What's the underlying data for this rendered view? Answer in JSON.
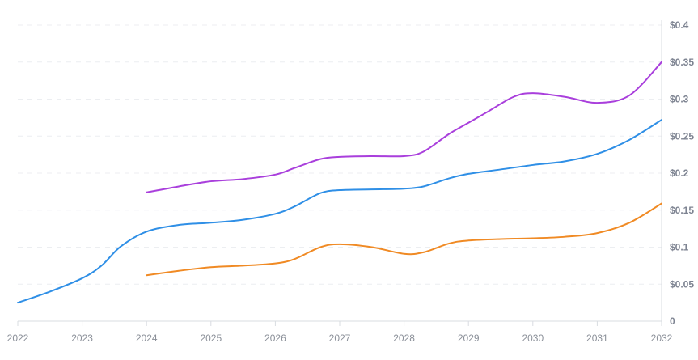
{
  "chart_data": {
    "type": "line",
    "title": "",
    "xlabel": "",
    "ylabel": "",
    "x_ticks": [
      "2022",
      "2023",
      "2024",
      "2025",
      "2026",
      "2027",
      "2028",
      "2029",
      "2030",
      "2031",
      "2032"
    ],
    "y_ticks": [
      "0",
      "$0.05",
      "$0.1",
      "$0.15",
      "$0.2",
      "$0.25",
      "$0.3",
      "$0.35",
      "$0.4"
    ],
    "xlim": [
      2022,
      2032
    ],
    "ylim": [
      0,
      0.4
    ],
    "grid": "horizontal dashed",
    "y_axis_side": "right",
    "series": [
      {
        "color": "#a93fdc",
        "x": [
          2024,
          2024.5,
          2025,
          2025.5,
          2026,
          2026.3,
          2026.7,
          2027,
          2027.5,
          2028,
          2028.3,
          2028.7,
          2029,
          2029.3,
          2029.7,
          2030,
          2030.5,
          2031,
          2031.5,
          2032
        ],
        "y": [
          0.174,
          0.182,
          0.189,
          0.192,
          0.198,
          0.207,
          0.219,
          0.222,
          0.223,
          0.223,
          0.229,
          0.253,
          0.268,
          0.283,
          0.303,
          0.308,
          0.303,
          0.295,
          0.305,
          0.35
        ]
      },
      {
        "color": "#2f8fe6",
        "x": [
          2022,
          2022.5,
          2023,
          2023.3,
          2023.6,
          2024,
          2024.5,
          2025,
          2025.5,
          2026,
          2026.3,
          2026.7,
          2027,
          2027.5,
          2028,
          2028.3,
          2028.7,
          2029,
          2029.5,
          2030,
          2030.5,
          2031,
          2031.5,
          2032
        ],
        "y": [
          0.025,
          0.04,
          0.058,
          0.075,
          0.101,
          0.121,
          0.13,
          0.133,
          0.137,
          0.145,
          0.155,
          0.173,
          0.177,
          0.178,
          0.179,
          0.182,
          0.193,
          0.199,
          0.205,
          0.211,
          0.216,
          0.226,
          0.245,
          0.272
        ]
      },
      {
        "color": "#f08a24",
        "x": [
          2024,
          2024.5,
          2025,
          2025.5,
          2026,
          2026.3,
          2026.7,
          2027,
          2027.5,
          2028,
          2028.3,
          2028.7,
          2029,
          2029.5,
          2030,
          2030.5,
          2031,
          2031.5,
          2032
        ],
        "y": [
          0.062,
          0.068,
          0.073,
          0.075,
          0.078,
          0.084,
          0.1,
          0.104,
          0.1,
          0.091,
          0.093,
          0.105,
          0.109,
          0.111,
          0.112,
          0.114,
          0.119,
          0.133,
          0.159
        ]
      }
    ]
  }
}
